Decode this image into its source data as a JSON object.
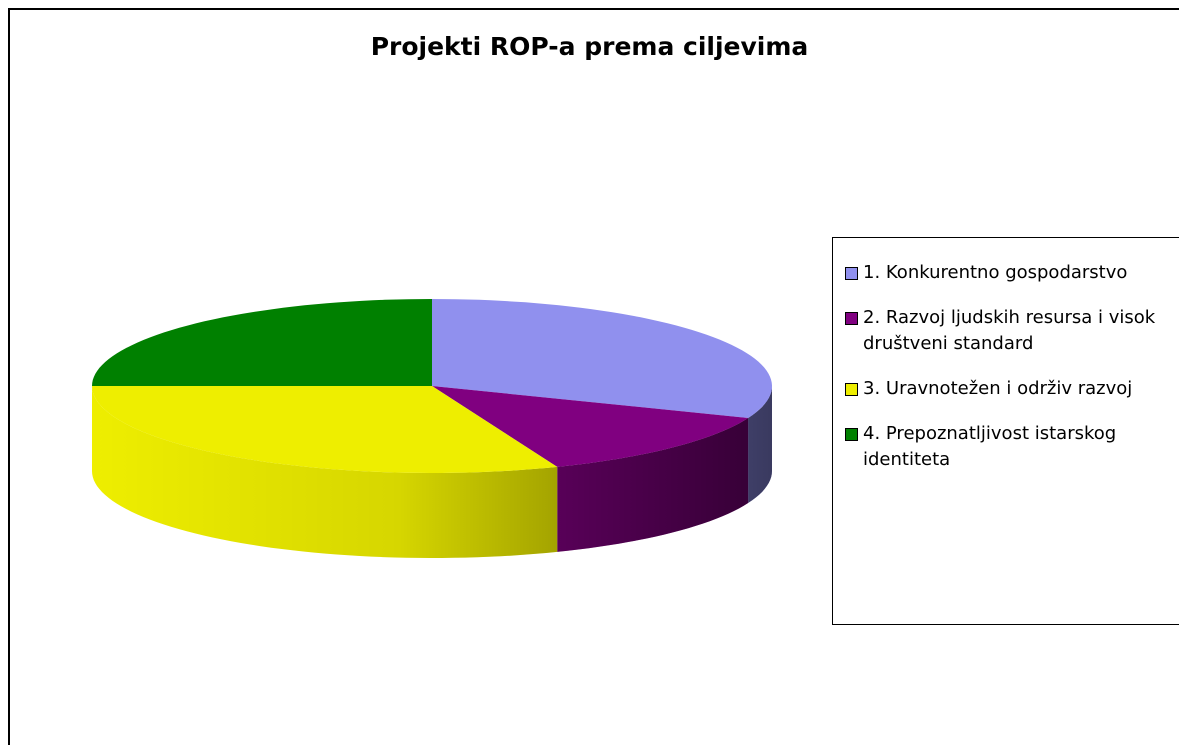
{
  "chart_data": {
    "type": "pie",
    "title": "Projekti ROP-a prema ciljevima",
    "categories": [
      "1. Konkurentno gospodarstvo",
      "2. Razvoj ljudskih  resursa i visok društveni standard",
      "3. Uravnotežen i održiv razvoj",
      "4. Prepoznatljivost istarskog identiteta"
    ],
    "values": [
      31,
      13,
      31,
      25
    ],
    "colors": [
      "#9090ee",
      "#800080",
      "#eeee00",
      "#008000"
    ],
    "legend": "right"
  }
}
